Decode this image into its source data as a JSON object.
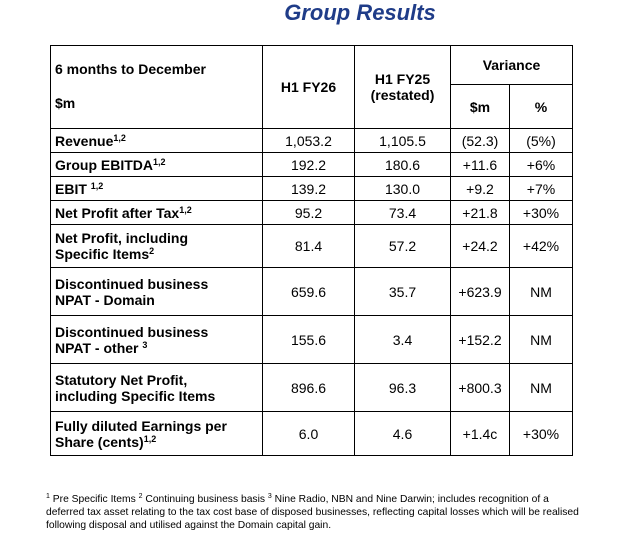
{
  "title": "Group Results",
  "header": {
    "period": "6 months to December",
    "unit": "$m",
    "col_h1fy26": "H1 FY26",
    "col_h1fy25_line1": "H1 FY25",
    "col_h1fy25_line2": "(restated)",
    "variance": "Variance",
    "variance_sm": "$m",
    "variance_pct": "%"
  },
  "rows": [
    {
      "label_line1": "Revenue",
      "label_sup": "1,2",
      "label_line2": "",
      "label_line2_sup": "",
      "h1fy26": "1,053.2",
      "h1fy25": "1,105.5",
      "var_sm": "(52.3)",
      "var_pct": "(5%)"
    },
    {
      "label_line1": "Group EBITDA",
      "label_sup": "1,2",
      "label_line2": "",
      "label_line2_sup": "",
      "h1fy26": "192.2",
      "h1fy25": "180.6",
      "var_sm": "+11.6",
      "var_pct": "+6%"
    },
    {
      "label_line1": "EBIT ",
      "label_sup": "1,2",
      "label_line2": "",
      "label_line2_sup": "",
      "h1fy26": "139.2",
      "h1fy25": "130.0",
      "var_sm": "+9.2",
      "var_pct": "+7%"
    },
    {
      "label_line1": "Net Profit after Tax",
      "label_sup": "1,2",
      "label_line2": "",
      "label_line2_sup": "",
      "h1fy26": "95.2",
      "h1fy25": "73.4",
      "var_sm": "+21.8",
      "var_pct": "+30%"
    },
    {
      "label_line1": "Net Profit, including",
      "label_sup": "",
      "label_line2": "Specific Items",
      "label_line2_sup": "2",
      "h1fy26": "81.4",
      "h1fy25": "57.2",
      "var_sm": "+24.2",
      "var_pct": "+42%"
    },
    {
      "label_line1": "Discontinued business",
      "label_sup": "",
      "label_line2": "NPAT - Domain",
      "label_line2_sup": "",
      "h1fy26": "659.6",
      "h1fy25": "35.7",
      "var_sm": "+623.9",
      "var_pct": "NM"
    },
    {
      "label_line1": "Discontinued business",
      "label_sup": "",
      "label_line2": "NPAT - other ",
      "label_line2_sup": "3",
      "h1fy26": "155.6",
      "h1fy25": "3.4",
      "var_sm": "+152.2",
      "var_pct": "NM"
    },
    {
      "label_line1": "Statutory Net Profit,",
      "label_sup": "",
      "label_line2": "including Specific Items",
      "label_line2_sup": "",
      "h1fy26": "896.6",
      "h1fy25": "96.3",
      "var_sm": "+800.3",
      "var_pct": "NM"
    },
    {
      "label_line1": "Fully diluted Earnings per",
      "label_sup": "",
      "label_line2": "Share (cents)",
      "label_line2_sup": "1,2",
      "h1fy26": "6.0",
      "h1fy25": "4.6",
      "var_sm": "+1.4c",
      "var_pct": "+30%"
    }
  ],
  "footnote": {
    "sup1": "1",
    "text1": " Pre Specific Items ",
    "sup2": "2",
    "text2": " Continuing business basis ",
    "sup3": "3",
    "text3": "  Nine Radio, NBN and Nine Darwin; includes recognition of a deferred tax asset relating to the tax cost base of disposed businesses, reflecting capital losses which will be realised following disposal and utilised against the Domain capital gain."
  }
}
